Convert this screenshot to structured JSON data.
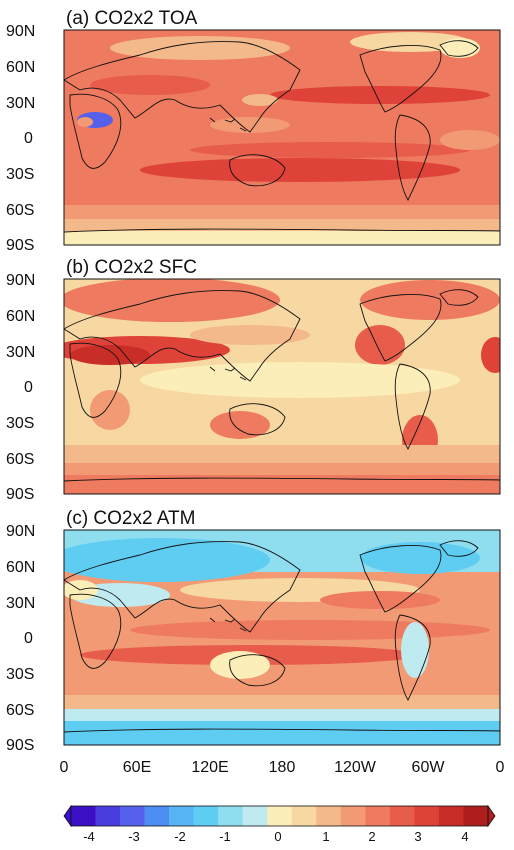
{
  "panels": [
    {
      "id": "toa",
      "title": "(a) CO2x2 TOA"
    },
    {
      "id": "sfc",
      "title": "(b) CO2x2 SFC"
    },
    {
      "id": "atm",
      "title": "(c) CO2x2 ATM"
    }
  ],
  "lat_labels": [
    "90N",
    "60N",
    "30N",
    "0",
    "30S",
    "60S",
    "90S"
  ],
  "lon_labels": [
    "0",
    "60E",
    "120E",
    "180",
    "120W",
    "60W",
    "0"
  ],
  "colorbar": {
    "labels": [
      "-4",
      "-3",
      "-2",
      "-1",
      "0",
      "1",
      "2",
      "3",
      "4"
    ],
    "colors": [
      "#3b0fc4",
      "#4a3de0",
      "#5561ec",
      "#4d8ef2",
      "#56b4f4",
      "#5fcdf2",
      "#8fdef0",
      "#bfeaf0",
      "#fbeeb8",
      "#f7d7a2",
      "#f4b98a",
      "#f29a74",
      "#ee7a5f",
      "#e85c4c",
      "#df4239",
      "#c92d27",
      "#ad1f1c"
    ]
  }
}
